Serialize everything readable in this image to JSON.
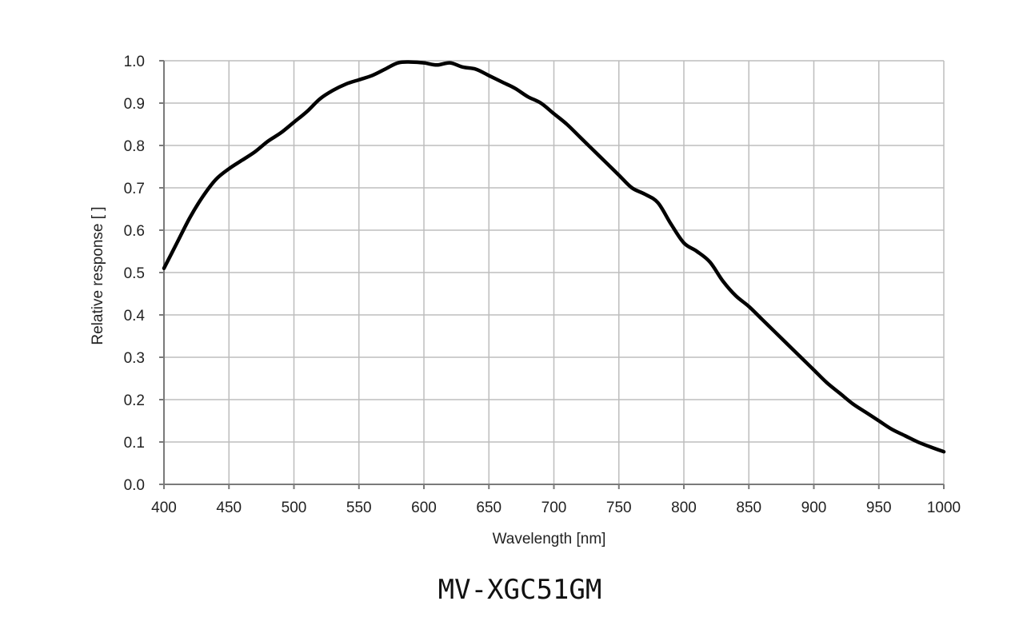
{
  "caption": "MV-XGC51GM",
  "chart_data": {
    "type": "line",
    "title": "",
    "xlabel": "Wavelength  [nm]",
    "ylabel": "Relative response [ ]",
    "xlim": [
      400,
      1000
    ],
    "ylim": [
      0.0,
      1.0
    ],
    "xticks": [
      "400",
      "450",
      "500",
      "550",
      "600",
      "650",
      "700",
      "750",
      "800",
      "850",
      "900",
      "950",
      "1000"
    ],
    "yticks": [
      "0.0",
      "0.1",
      "0.2",
      "0.3",
      "0.4",
      "0.5",
      "0.6",
      "0.7",
      "0.8",
      "0.9",
      "1.0"
    ],
    "grid": true,
    "line_color": "#000000",
    "series": [
      {
        "x": [
          400,
          410,
          420,
          430,
          440,
          450,
          460,
          470,
          480,
          490,
          500,
          510,
          520,
          530,
          540,
          550,
          560,
          570,
          580,
          590,
          600,
          610,
          620,
          630,
          640,
          650,
          660,
          670,
          680,
          690,
          700,
          710,
          720,
          730,
          740,
          750,
          760,
          770,
          780,
          790,
          800,
          810,
          820,
          830,
          840,
          850,
          860,
          870,
          880,
          890,
          900,
          910,
          920,
          930,
          940,
          950,
          960,
          970,
          980,
          990,
          1000
        ],
        "y": [
          0.51,
          0.57,
          0.63,
          0.68,
          0.72,
          0.745,
          0.765,
          0.785,
          0.81,
          0.83,
          0.855,
          0.88,
          0.91,
          0.93,
          0.945,
          0.955,
          0.965,
          0.98,
          0.995,
          0.997,
          0.995,
          0.99,
          0.995,
          0.985,
          0.98,
          0.965,
          0.95,
          0.935,
          0.915,
          0.9,
          0.875,
          0.85,
          0.82,
          0.79,
          0.76,
          0.73,
          0.7,
          0.685,
          0.665,
          0.615,
          0.57,
          0.55,
          0.525,
          0.48,
          0.445,
          0.42,
          0.39,
          0.36,
          0.33,
          0.3,
          0.27,
          0.24,
          0.215,
          0.19,
          0.17,
          0.15,
          0.13,
          0.115,
          0.1,
          0.088,
          0.077
        ]
      }
    ]
  }
}
